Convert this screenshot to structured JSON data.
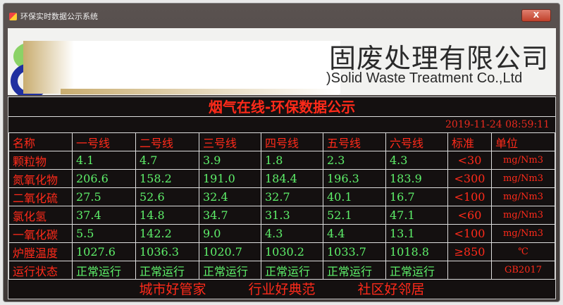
{
  "window": {
    "title": "环保实时数据公示系统",
    "close_label": "X"
  },
  "banner": {
    "company_cn": "固废处理有限公司",
    "company_en": ")Solid Waste Treatment Co.,Ltd"
  },
  "board": {
    "title": "烟气在线-环保数据公示",
    "datetime": "2019-11-24 08:59:11",
    "headers": [
      "名称",
      "一号线",
      "二号线",
      "三号线",
      "四号线",
      "五号线",
      "六号线",
      "标准",
      "单位"
    ],
    "rows": [
      {
        "name": "颗粒物",
        "values": [
          "4.1",
          "4.7",
          "3.9",
          "1.8",
          "2.3",
          "4.3"
        ],
        "standard": "<30",
        "unit": "mg/Nm3"
      },
      {
        "name": "氮氧化物",
        "values": [
          "206.6",
          "158.2",
          "191.0",
          "184.4",
          "196.3",
          "183.9"
        ],
        "standard": "<300",
        "unit": "mg/Nm3"
      },
      {
        "name": "二氧化硫",
        "values": [
          "27.5",
          "52.6",
          "32.4",
          "32.7",
          "40.1",
          "16.7"
        ],
        "standard": "<100",
        "unit": "mg/Nm3"
      },
      {
        "name": "氯化氢",
        "values": [
          "37.4",
          "14.8",
          "34.7",
          "31.3",
          "52.1",
          "47.1"
        ],
        "standard": "<60",
        "unit": "mg/Nm3"
      },
      {
        "name": "一氧化碳",
        "values": [
          "5.5",
          "142.2",
          "9.0",
          "4.3",
          "4.4",
          "13.1"
        ],
        "standard": "<100",
        "unit": "mg/Nm3"
      },
      {
        "name": "炉膛温度",
        "values": [
          "1027.6",
          "1036.3",
          "1020.7",
          "1030.2",
          "1033.7",
          "1018.8"
        ],
        "standard": "≥850",
        "unit": "℃"
      },
      {
        "name": "运行状态",
        "values": [
          "正常运行",
          "正常运行",
          "正常运行",
          "正常运行",
          "正常运行",
          "正常运行"
        ],
        "standard": "",
        "unit": "GB2017"
      }
    ],
    "slogans": [
      "城市好管家",
      "行业好典范",
      "社区好邻居"
    ]
  }
}
